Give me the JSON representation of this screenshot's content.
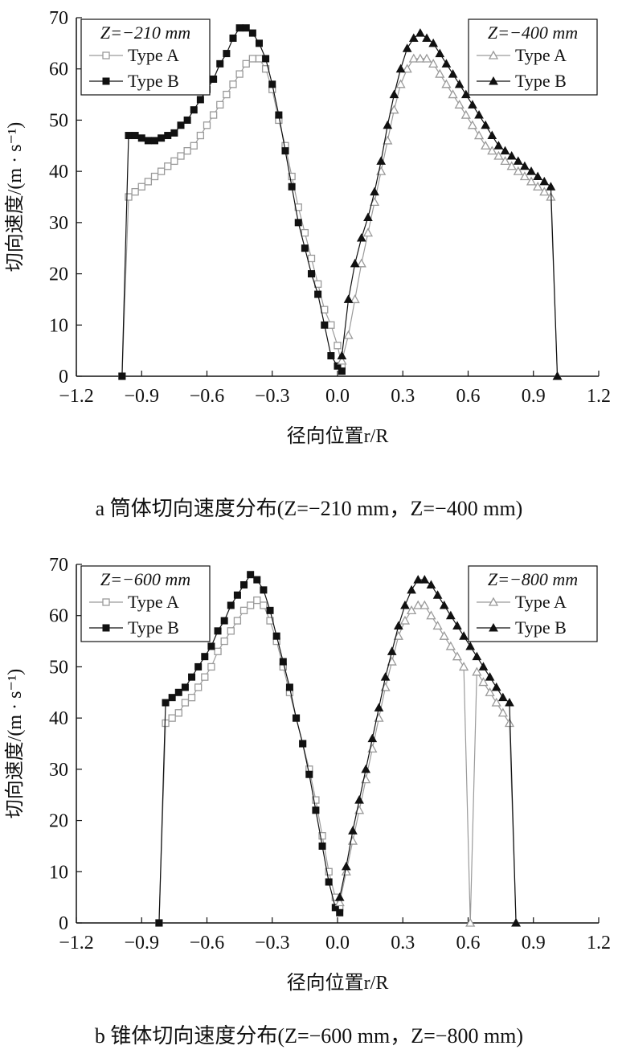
{
  "chart_data": [
    {
      "type": "line",
      "caption": "a 筒体切向速度分布(Z=−210 mm，Z=−400 mm)",
      "xlabel": "径向位置r/R",
      "ylabel": "切向速度/(m · s⁻¹)",
      "xlim": [
        -1.2,
        1.2
      ],
      "ylim": [
        0,
        70
      ],
      "xticks": [
        "−1.2",
        "−0.9",
        "−0.6",
        "−0.3",
        "0.0",
        "0.3",
        "0.6",
        "0.9",
        "1.2"
      ],
      "yticks": [
        "0",
        "10",
        "20",
        "30",
        "40",
        "50",
        "60",
        "70"
      ],
      "grid": false,
      "legends": [
        {
          "position": "top-left",
          "title": "Z=−210 mm",
          "entries": [
            "Type A",
            "Type B"
          ]
        },
        {
          "position": "top-right",
          "title": "Z=−400 mm",
          "entries": [
            "Type A",
            "Type B"
          ]
        }
      ],
      "series": [
        {
          "name": "Type A",
          "group": "Z=−210 mm",
          "marker": "open-square",
          "color": "#9a9a9a",
          "x": [
            -0.99,
            -0.96,
            -0.93,
            -0.9,
            -0.87,
            -0.84,
            -0.81,
            -0.78,
            -0.75,
            -0.72,
            -0.69,
            -0.66,
            -0.63,
            -0.6,
            -0.57,
            -0.54,
            -0.51,
            -0.48,
            -0.45,
            -0.42,
            -0.39,
            -0.36,
            -0.33,
            -0.3,
            -0.27,
            -0.24,
            -0.21,
            -0.18,
            -0.15,
            -0.12,
            -0.09,
            -0.06,
            -0.03,
            0.0,
            0.02
          ],
          "y": [
            0,
            35,
            36,
            37,
            38,
            39,
            40,
            41,
            42,
            43,
            44,
            45,
            47,
            49,
            51,
            53,
            55,
            57,
            59,
            61,
            62,
            62,
            60,
            56,
            50,
            45,
            39,
            33,
            28,
            23,
            18,
            13,
            10,
            6,
            2
          ]
        },
        {
          "name": "Type B",
          "group": "Z=−210 mm",
          "marker": "filled-square",
          "color": "#111111",
          "x": [
            -0.99,
            -0.96,
            -0.93,
            -0.9,
            -0.87,
            -0.84,
            -0.81,
            -0.78,
            -0.75,
            -0.72,
            -0.69,
            -0.66,
            -0.63,
            -0.6,
            -0.57,
            -0.54,
            -0.51,
            -0.48,
            -0.45,
            -0.42,
            -0.39,
            -0.36,
            -0.33,
            -0.3,
            -0.27,
            -0.24,
            -0.21,
            -0.18,
            -0.15,
            -0.12,
            -0.09,
            -0.06,
            -0.03,
            0.0,
            0.02
          ],
          "y": [
            0,
            47,
            47,
            46.5,
            46,
            46,
            46.5,
            47,
            47.5,
            49,
            50,
            52,
            54,
            56,
            58,
            61,
            63,
            66,
            68,
            68,
            67,
            65,
            62,
            57,
            51,
            44,
            37,
            30,
            25,
            20,
            16,
            10,
            4,
            2,
            1
          ]
        },
        {
          "name": "Type A",
          "group": "Z=−400 mm",
          "marker": "open-triangle",
          "color": "#9a9a9a",
          "x": [
            0.02,
            0.05,
            0.08,
            0.11,
            0.14,
            0.17,
            0.2,
            0.23,
            0.26,
            0.29,
            0.32,
            0.35,
            0.38,
            0.41,
            0.44,
            0.47,
            0.5,
            0.53,
            0.56,
            0.59,
            0.62,
            0.65,
            0.68,
            0.71,
            0.74,
            0.77,
            0.8,
            0.83,
            0.86,
            0.89,
            0.92,
            0.95,
            0.98,
            1.01
          ],
          "y": [
            3,
            8,
            15,
            22,
            28,
            34,
            40,
            46,
            52,
            57,
            60,
            62,
            62,
            62,
            61,
            59,
            57,
            55,
            53,
            51,
            49,
            47,
            45,
            44,
            43,
            42,
            41,
            40,
            39,
            38,
            37,
            36,
            35,
            0
          ]
        },
        {
          "name": "Type B",
          "group": "Z=−400 mm",
          "marker": "filled-triangle",
          "color": "#111111",
          "x": [
            0.02,
            0.05,
            0.08,
            0.11,
            0.14,
            0.17,
            0.2,
            0.23,
            0.26,
            0.29,
            0.32,
            0.35,
            0.38,
            0.41,
            0.44,
            0.47,
            0.5,
            0.53,
            0.56,
            0.59,
            0.62,
            0.65,
            0.68,
            0.71,
            0.74,
            0.77,
            0.8,
            0.83,
            0.86,
            0.89,
            0.92,
            0.95,
            0.98,
            1.01
          ],
          "y": [
            4,
            15,
            22,
            27,
            31,
            36,
            42,
            49,
            55,
            60,
            64,
            66,
            67,
            66,
            65,
            63,
            61,
            59,
            57,
            55,
            53,
            51,
            49,
            47,
            45,
            44,
            43,
            42,
            41,
            40,
            39,
            38,
            37,
            0
          ]
        }
      ]
    },
    {
      "type": "line",
      "caption": "b 锥体切向速度分布(Z=−600 mm，Z=−800 mm)",
      "xlabel": "径向位置r/R",
      "ylabel": "切向速度/(m · s⁻¹)",
      "xlim": [
        -1.2,
        1.2
      ],
      "ylim": [
        0,
        70
      ],
      "xticks": [
        "−1.2",
        "−0.9",
        "−0.6",
        "−0.3",
        "0.0",
        "0.3",
        "0.6",
        "0.9",
        "1.2"
      ],
      "yticks": [
        "0",
        "10",
        "20",
        "30",
        "40",
        "50",
        "60",
        "70"
      ],
      "grid": false,
      "legends": [
        {
          "position": "top-left",
          "title": "Z=−600 mm",
          "entries": [
            "Type A",
            "Type B"
          ]
        },
        {
          "position": "top-right",
          "title": "Z=−800 mm",
          "entries": [
            "Type A",
            "Type B"
          ]
        }
      ],
      "series": [
        {
          "name": "Type A",
          "group": "Z=−600 mm",
          "marker": "open-square",
          "color": "#9a9a9a",
          "x": [
            -0.82,
            -0.79,
            -0.76,
            -0.73,
            -0.7,
            -0.67,
            -0.64,
            -0.61,
            -0.58,
            -0.55,
            -0.52,
            -0.49,
            -0.46,
            -0.43,
            -0.4,
            -0.37,
            -0.34,
            -0.31,
            -0.28,
            -0.25,
            -0.22,
            -0.19,
            -0.16,
            -0.13,
            -0.1,
            -0.07,
            -0.04,
            -0.01,
            0.01
          ],
          "y": [
            0,
            39,
            40,
            41,
            43,
            44,
            46,
            48,
            50,
            53,
            55,
            57,
            59,
            61,
            62,
            63,
            62,
            59,
            55,
            50,
            45,
            40,
            35,
            30,
            24,
            17,
            10,
            5,
            3
          ]
        },
        {
          "name": "Type B",
          "group": "Z=−600 mm",
          "marker": "filled-square",
          "color": "#111111",
          "x": [
            -0.82,
            -0.79,
            -0.76,
            -0.73,
            -0.7,
            -0.67,
            -0.64,
            -0.61,
            -0.58,
            -0.55,
            -0.52,
            -0.49,
            -0.46,
            -0.43,
            -0.4,
            -0.37,
            -0.34,
            -0.31,
            -0.28,
            -0.25,
            -0.22,
            -0.19,
            -0.16,
            -0.13,
            -0.1,
            -0.07,
            -0.04,
            -0.01,
            0.01
          ],
          "y": [
            0,
            43,
            44,
            45,
            46,
            48,
            50,
            52,
            54,
            57,
            59,
            62,
            64,
            66,
            68,
            67,
            65,
            61,
            56,
            51,
            46,
            40,
            35,
            29,
            22,
            15,
            8,
            3,
            2
          ]
        },
        {
          "name": "Type A",
          "group": "Z=−800 mm",
          "marker": "open-triangle",
          "color": "#9a9a9a",
          "x": [
            0.01,
            0.04,
            0.07,
            0.1,
            0.13,
            0.16,
            0.19,
            0.22,
            0.25,
            0.28,
            0.31,
            0.34,
            0.37,
            0.4,
            0.43,
            0.46,
            0.49,
            0.52,
            0.55,
            0.58,
            0.61,
            0.64,
            0.67,
            0.7,
            0.73,
            0.76,
            0.79,
            0.82
          ],
          "y": [
            4,
            10,
            16,
            22,
            28,
            34,
            40,
            46,
            51,
            56,
            59,
            61,
            62,
            62,
            60,
            58,
            56,
            54,
            52,
            50,
            0,
            49,
            47,
            45,
            43,
            41,
            39,
            0
          ]
        },
        {
          "name": "Type B",
          "group": "Z=−800 mm",
          "marker": "filled-triangle",
          "color": "#111111",
          "x": [
            0.01,
            0.04,
            0.07,
            0.1,
            0.13,
            0.16,
            0.19,
            0.22,
            0.25,
            0.28,
            0.31,
            0.34,
            0.37,
            0.4,
            0.43,
            0.46,
            0.49,
            0.52,
            0.55,
            0.58,
            0.61,
            0.64,
            0.67,
            0.7,
            0.73,
            0.76,
            0.79,
            0.82
          ],
          "y": [
            5,
            11,
            18,
            24,
            30,
            36,
            42,
            48,
            53,
            58,
            62,
            65,
            67,
            67,
            66,
            64,
            62,
            60,
            58,
            56,
            54,
            52,
            50,
            48,
            46,
            44,
            43,
            0
          ]
        }
      ]
    }
  ]
}
